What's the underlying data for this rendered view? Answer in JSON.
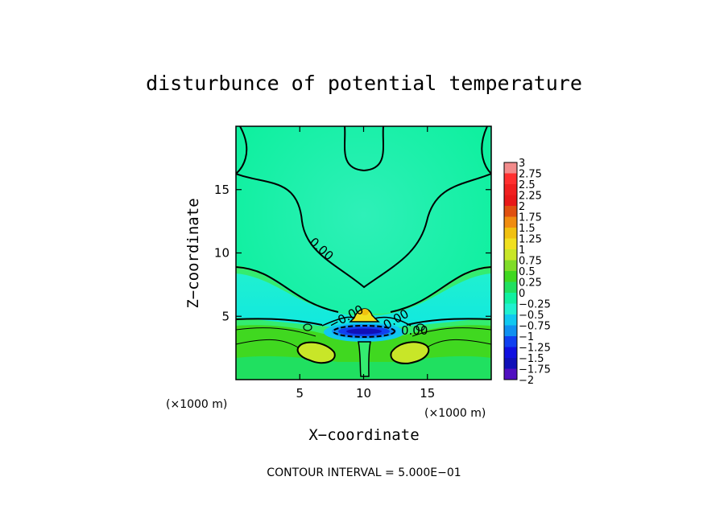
{
  "chart_data": {
    "type": "heatmap",
    "title": "disturbunce of potential temperature",
    "xlabel": "X−coordinate",
    "ylabel": "Z−coordinate",
    "x_unit": "(×1000 m)",
    "y_unit": "(×1000 m)",
    "xlim": [
      0,
      20
    ],
    "ylim": [
      0,
      20
    ],
    "x_ticks": [
      5,
      10,
      15
    ],
    "y_ticks": [
      5,
      10,
      15
    ],
    "contour_interval_text": "CONTOUR INTERVAL = 5.000E−01",
    "contour_labels": [
      "0.00",
      "0.00",
      "−0.00",
      "0.00"
    ],
    "colorbar": {
      "levels": [
        "3",
        "2.75",
        "2.5",
        "2.25",
        "2",
        "1.75",
        "1.5",
        "1.25",
        "1",
        "0.75",
        "0.5",
        "0.25",
        "0",
        "−0.25",
        "−0.5",
        "−0.75",
        "−1",
        "−1.25",
        "−1.5",
        "−1.75",
        "−2"
      ],
      "colors": [
        "#f28c8c",
        "#ff3030",
        "#f02020",
        "#e81818",
        "#e05010",
        "#f08c10",
        "#f0c010",
        "#f0e020",
        "#c8e628",
        "#80dc28",
        "#40d820",
        "#20e060",
        "#10f0a0",
        "#20f0d0",
        "#10c8f0",
        "#1090f0",
        "#1040f0",
        "#1010e0",
        "#1010b8",
        "#5010c0"
      ]
    }
  }
}
